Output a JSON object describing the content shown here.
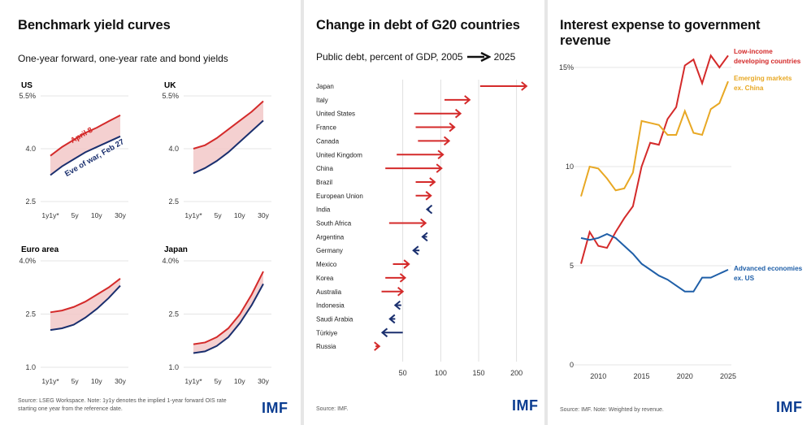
{
  "logo_text": "IMF",
  "colors": {
    "red": "#d42a2a",
    "navy": "#1a2f6e",
    "fill": "#f2c8c8",
    "gold": "#e8a824",
    "blue": "#1f5fa8",
    "imf_blue": "#0b3d91"
  },
  "panel1": {
    "title": "Benchmark yield curves",
    "subtitle": "One-year forward, one-year rate and bond yields",
    "source_line1": "Source: LSEG Workspace. Note: 1y1y denotes the implied 1-year forward OIS rate",
    "source_line2": "starting one year from the reference date."
  },
  "panel2": {
    "title": "Change in debt of G20 countries",
    "subtitle_prefix": "Public debt, percent of GDP, 2005",
    "subtitle_suffix": "2025",
    "source": "Source: IMF."
  },
  "panel3": {
    "title": "Interest expense to government revenue",
    "source": "Source: IMF. Note: Weighted by revenue."
  },
  "chart_data": [
    {
      "type": "line",
      "panel": "US",
      "categories": [
        "1y1y*",
        "5y",
        "10y",
        "30y"
      ],
      "yticks": [
        "2.5",
        "4.0",
        "5.5%"
      ],
      "ylim": [
        2.5,
        5.5
      ],
      "series": [
        {
          "name": "April 8",
          "x": [
            0,
            0.5,
            1,
            1.5,
            2,
            2.5,
            3
          ],
          "values": [
            3.8,
            4.05,
            4.25,
            4.45,
            4.6,
            4.78,
            4.95
          ]
        },
        {
          "name": "Eve of war, Feb 27",
          "x": [
            0,
            0.5,
            1,
            1.5,
            2,
            2.5,
            3
          ],
          "values": [
            3.25,
            3.5,
            3.7,
            3.9,
            4.05,
            4.2,
            4.35
          ]
        }
      ]
    },
    {
      "type": "line",
      "panel": "UK",
      "categories": [
        "1y1y*",
        "5y",
        "10y",
        "30y"
      ],
      "yticks": [
        "2.5",
        "4.0",
        "5.5%"
      ],
      "ylim": [
        2.5,
        5.5
      ],
      "series": [
        {
          "values": [
            4.0,
            4.1,
            4.3,
            4.55,
            4.8,
            5.05,
            5.35
          ],
          "x": [
            0,
            0.5,
            1,
            1.5,
            2,
            2.5,
            3
          ]
        },
        {
          "values": [
            3.3,
            3.45,
            3.65,
            3.9,
            4.2,
            4.5,
            4.8
          ],
          "x": [
            0,
            0.5,
            1,
            1.5,
            2,
            2.5,
            3
          ]
        }
      ]
    },
    {
      "type": "line",
      "panel": "Euro area",
      "categories": [
        "1y1y*",
        "5y",
        "10y",
        "30y"
      ],
      "yticks": [
        "1.0",
        "2.5",
        "4.0%"
      ],
      "ylim": [
        1.0,
        4.0
      ],
      "series": [
        {
          "values": [
            2.55,
            2.6,
            2.7,
            2.85,
            3.05,
            3.25,
            3.5
          ],
          "x": [
            0,
            0.5,
            1,
            1.5,
            2,
            2.5,
            3
          ]
        },
        {
          "values": [
            2.05,
            2.1,
            2.2,
            2.4,
            2.65,
            2.95,
            3.3
          ],
          "x": [
            0,
            0.5,
            1,
            1.5,
            2,
            2.5,
            3
          ]
        }
      ]
    },
    {
      "type": "line",
      "panel": "Japan",
      "categories": [
        "1y1y*",
        "5y",
        "10y",
        "30y"
      ],
      "yticks": [
        "1.0",
        "2.5",
        "4.0%"
      ],
      "ylim": [
        1.0,
        4.0
      ],
      "series": [
        {
          "values": [
            1.65,
            1.7,
            1.85,
            2.1,
            2.5,
            3.05,
            3.7
          ],
          "x": [
            0,
            0.5,
            1,
            1.5,
            2,
            2.5,
            3
          ]
        },
        {
          "values": [
            1.4,
            1.45,
            1.6,
            1.85,
            2.25,
            2.75,
            3.35
          ],
          "x": [
            0,
            0.5,
            1,
            1.5,
            2,
            2.5,
            3
          ]
        }
      ]
    },
    {
      "type": "bar",
      "subtype": "arrow",
      "xticks": [
        50,
        100,
        150,
        200
      ],
      "xlim": [
        0,
        225
      ],
      "countries": [
        {
          "name": "Japan",
          "start": 152,
          "end": 213,
          "dir": "up"
        },
        {
          "name": "Italy",
          "start": 105,
          "end": 138,
          "dir": "up"
        },
        {
          "name": "United States",
          "start": 65,
          "end": 126,
          "dir": "up"
        },
        {
          "name": "France",
          "start": 67,
          "end": 118,
          "dir": "up"
        },
        {
          "name": "Canada",
          "start": 70,
          "end": 111,
          "dir": "up"
        },
        {
          "name": "United Kingdom",
          "start": 42,
          "end": 103,
          "dir": "up"
        },
        {
          "name": "China",
          "start": 27,
          "end": 101,
          "dir": "up"
        },
        {
          "name": "Brazil",
          "start": 67,
          "end": 92,
          "dir": "up"
        },
        {
          "name": "European Union",
          "start": 67,
          "end": 87,
          "dir": "up"
        },
        {
          "name": "India",
          "start": 85,
          "end": 82,
          "dir": "down"
        },
        {
          "name": "South Africa",
          "start": 32,
          "end": 80,
          "dir": "up"
        },
        {
          "name": "Argentina",
          "start": 82,
          "end": 76,
          "dir": "down"
        },
        {
          "name": "Germany",
          "start": 72,
          "end": 64,
          "dir": "down"
        },
        {
          "name": "Mexico",
          "start": 37,
          "end": 58,
          "dir": "up"
        },
        {
          "name": "Korea",
          "start": 27,
          "end": 53,
          "dir": "up"
        },
        {
          "name": "Australia",
          "start": 22,
          "end": 50,
          "dir": "up"
        },
        {
          "name": "Indonesia",
          "start": 48,
          "end": 40,
          "dir": "down"
        },
        {
          "name": "Saudi Arabia",
          "start": 40,
          "end": 33,
          "dir": "down"
        },
        {
          "name": "Türkiye",
          "start": 50,
          "end": 23,
          "dir": "down"
        },
        {
          "name": "Russia",
          "start": 14,
          "end": 19,
          "dir": "up"
        }
      ]
    },
    {
      "type": "line",
      "xticks": [
        2010,
        2015,
        2020,
        2025
      ],
      "yticks": [
        "0",
        "5",
        "10",
        "15%"
      ],
      "xlim": [
        2007.5,
        2025.5
      ],
      "ylim": [
        0,
        16
      ],
      "x": [
        2008,
        2009,
        2010,
        2011,
        2012,
        2013,
        2014,
        2015,
        2016,
        2017,
        2018,
        2019,
        2020,
        2021,
        2022,
        2023,
        2024,
        2025
      ],
      "series": [
        {
          "name": "Low-income developing countries",
          "label_line1": "Low-income",
          "label_line2": "developing countries",
          "color": "#d42a2a",
          "values": [
            5.1,
            6.7,
            6.0,
            5.9,
            6.7,
            7.4,
            8.0,
            10.0,
            11.2,
            11.1,
            12.4,
            13.0,
            15.1,
            15.4,
            14.2,
            15.6,
            15.0,
            15.6
          ]
        },
        {
          "name": "Emerging markets ex. China",
          "label_line1": "Emerging markets",
          "label_line2": "ex. China",
          "color": "#e8a824",
          "values": [
            8.5,
            10.0,
            9.9,
            9.4,
            8.8,
            8.9,
            9.7,
            12.3,
            12.2,
            12.1,
            11.6,
            11.6,
            12.8,
            11.7,
            11.6,
            12.9,
            13.2,
            14.3
          ]
        },
        {
          "name": "Advanced economies ex. US",
          "label_line1": "Advanced economies",
          "label_line2": "ex. US",
          "color": "#1f5fa8",
          "values": [
            6.4,
            6.3,
            6.4,
            6.6,
            6.4,
            6.0,
            5.6,
            5.1,
            4.8,
            4.5,
            4.3,
            4.0,
            3.7,
            3.7,
            4.4,
            4.4,
            4.6,
            4.8
          ]
        }
      ]
    }
  ]
}
